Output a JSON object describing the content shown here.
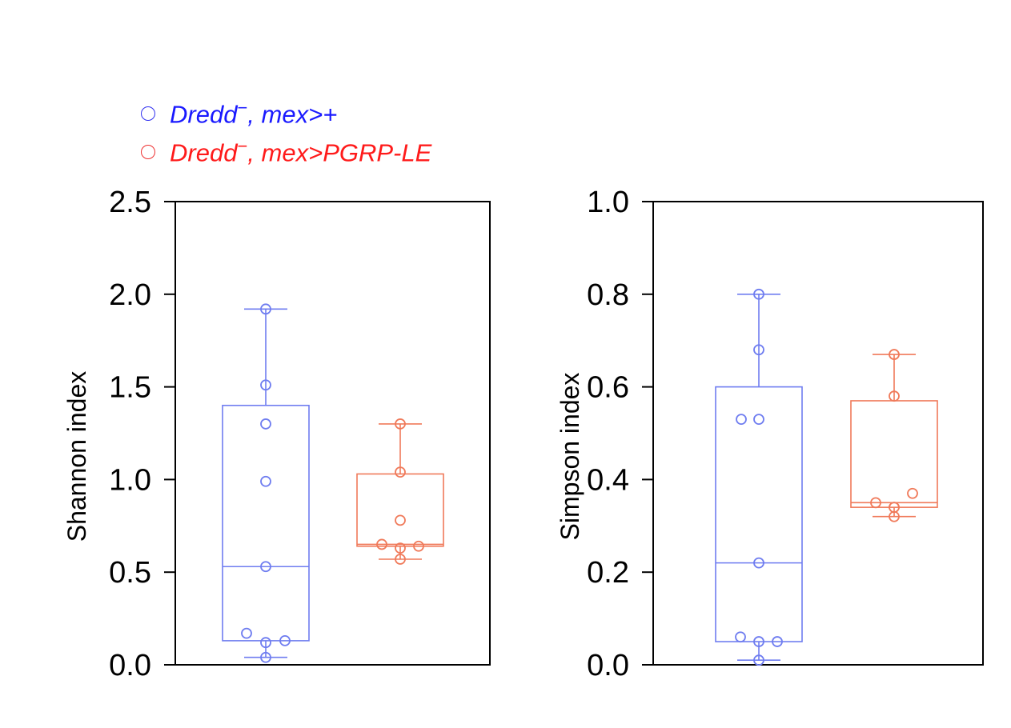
{
  "legend": [
    {
      "marker_color": "#3030f0",
      "text_color": "#1a1aff",
      "label_prefix": "Dredd",
      "sup": "−",
      "label_suffix": ", mex>+"
    },
    {
      "marker_color": "#ee3030",
      "text_color": "#ff1a1a",
      "label_prefix": "Dredd",
      "sup": "−",
      "label_suffix": ", mex>PGRP-LE"
    }
  ],
  "colors": {
    "series1": "#6f7df0",
    "series2": "#f07a5a"
  },
  "chart_data": [
    {
      "type": "box",
      "ylabel": "Shannon index",
      "ylim": [
        0,
        2.5
      ],
      "yticks": [
        "0.0",
        "0.5",
        "1.0",
        "1.5",
        "2.0",
        "2.5"
      ],
      "series": [
        {
          "box": {
            "min": 0.04,
            "q1": 0.13,
            "median": 0.53,
            "q3": 1.4,
            "max": 1.92
          },
          "points": [
            1.92,
            1.51,
            1.3,
            0.99,
            0.53,
            0.17,
            0.12,
            0.13,
            0.04
          ]
        },
        {
          "box": {
            "min": 0.57,
            "q1": 0.64,
            "median": 0.65,
            "q3": 1.03,
            "max": 1.3
          },
          "points": [
            1.3,
            1.04,
            0.78,
            0.65,
            0.63,
            0.64,
            0.57
          ]
        }
      ]
    },
    {
      "type": "box",
      "ylabel": "Simpson index",
      "ylim": [
        0,
        1.0
      ],
      "yticks": [
        "0.0",
        "0.2",
        "0.4",
        "0.6",
        "0.8",
        "1.0"
      ],
      "series": [
        {
          "box": {
            "min": 0.01,
            "q1": 0.05,
            "median": 0.22,
            "q3": 0.6,
            "max": 0.8
          },
          "points": [
            0.8,
            0.68,
            0.53,
            0.53,
            0.22,
            0.06,
            0.05,
            0.05,
            0.01
          ]
        },
        {
          "box": {
            "min": 0.32,
            "q1": 0.34,
            "median": 0.35,
            "q3": 0.57,
            "max": 0.67
          },
          "points": [
            0.67,
            0.58,
            0.35,
            0.37,
            0.34,
            0.34,
            0.32
          ]
        }
      ]
    }
  ]
}
